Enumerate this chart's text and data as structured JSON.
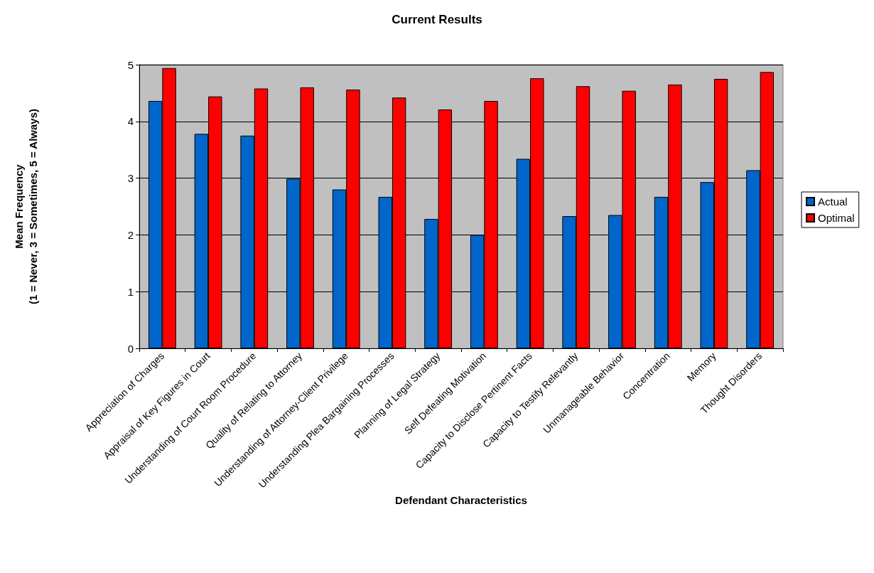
{
  "chart_data": {
    "type": "bar",
    "title": "Current Results",
    "xlabel": "Defendant Characteristics",
    "ylabel": "Mean Frequency\n(1 = Never, 3 = Sometimes, 5 = Always)",
    "categories": [
      "Appreciation of Charges",
      "Appraisal of Key Figures in Court",
      "Understanding of Court Room Procedure",
      "Quality of Relating to Attorney",
      "Understanding of Attorney-Client Privilege",
      "Understanding Plea Bargaining Processes",
      "Planning of Legal Strategy",
      "Self Defeating Motivation",
      "Capacity to Disclose Pertinent Facts",
      "Capacity to Testify Relevantly",
      "Unmanageable Behavior",
      "Concentration",
      "Memory",
      "Thought Disorders"
    ],
    "series": [
      {
        "name": "Actual",
        "color": "#0066cc",
        "values": [
          4.36,
          3.78,
          3.75,
          2.99,
          2.8,
          2.67,
          2.28,
          2.0,
          3.34,
          2.33,
          2.35,
          2.67,
          2.93,
          3.14
        ]
      },
      {
        "name": "Optimal",
        "color": "#ff0000",
        "values": [
          4.94,
          4.44,
          4.58,
          4.6,
          4.56,
          4.42,
          4.21,
          4.36,
          4.76,
          4.62,
          4.54,
          4.65,
          4.75,
          4.87
        ]
      }
    ],
    "ylim": [
      0,
      5
    ],
    "yticks": [
      0,
      1,
      2,
      3,
      4,
      5
    ],
    "grid": "y",
    "legend": "right"
  }
}
